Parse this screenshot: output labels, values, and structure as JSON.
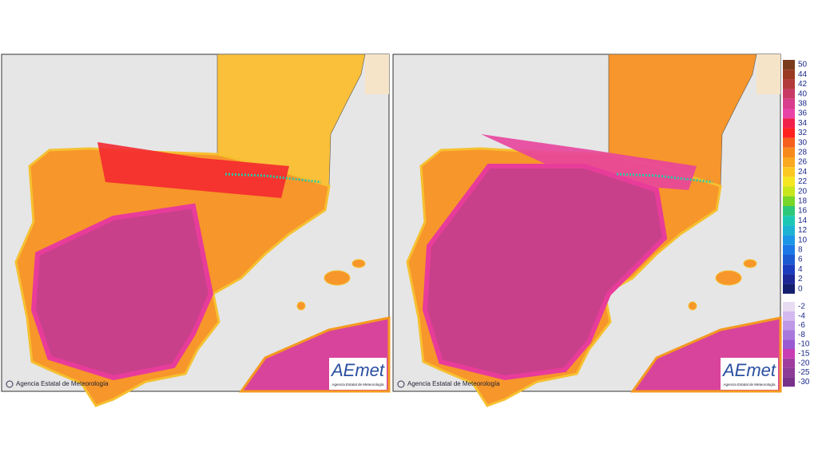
{
  "panels": [
    {
      "credit": "Agencia Estatal de Meteorología",
      "logo": "AEmet",
      "logo_subtitle": "Agencia Estatal de Meteorología"
    },
    {
      "credit": "Agencia Estatal de Meteorología",
      "logo": "AEmet",
      "logo_subtitle": "Agencia Estatal de Meteorología"
    }
  ],
  "legend": {
    "positive": [
      {
        "label": 50,
        "color": "#7a3a1c"
      },
      {
        "label": 44,
        "color": "#9a3a22"
      },
      {
        "label": 42,
        "color": "#b23a3a"
      },
      {
        "label": 40,
        "color": "#c83a64"
      },
      {
        "label": 38,
        "color": "#d83c8c"
      },
      {
        "label": 36,
        "color": "#e844a8"
      },
      {
        "label": 34,
        "color": "#f0204a"
      },
      {
        "label": 32,
        "color": "#ff2020"
      },
      {
        "label": 30,
        "color": "#f5601c"
      },
      {
        "label": 28,
        "color": "#f88a1c"
      },
      {
        "label": 26,
        "color": "#f9a820"
      },
      {
        "label": 24,
        "color": "#fac820"
      },
      {
        "label": 22,
        "color": "#f5e622"
      },
      {
        "label": 20,
        "color": "#c8e61c"
      },
      {
        "label": 18,
        "color": "#78d628"
      },
      {
        "label": 16,
        "color": "#2ec87a"
      },
      {
        "label": 14,
        "color": "#1cc8b4"
      },
      {
        "label": 12,
        "color": "#1cb4d2"
      },
      {
        "label": 10,
        "color": "#1c96e6"
      },
      {
        "label": 8,
        "color": "#1c78e6"
      },
      {
        "label": 6,
        "color": "#1c5ad2"
      },
      {
        "label": 4,
        "color": "#1c3cbe"
      },
      {
        "label": 2,
        "color": "#1c2896"
      },
      {
        "label": 0,
        "color": "#141e6e"
      }
    ],
    "negative": [
      {
        "label": -2,
        "color": "#e8dcf2"
      },
      {
        "label": -4,
        "color": "#d4b8f0"
      },
      {
        "label": -6,
        "color": "#be98e6"
      },
      {
        "label": -8,
        "color": "#a878dc"
      },
      {
        "label": -10,
        "color": "#9a5ad2"
      },
      {
        "label": -15,
        "color": "#c83cb4"
      },
      {
        "label": -20,
        "color": "#a03ca0"
      },
      {
        "label": -25,
        "color": "#8c3c96"
      },
      {
        "label": -30,
        "color": "#78328c"
      }
    ]
  }
}
